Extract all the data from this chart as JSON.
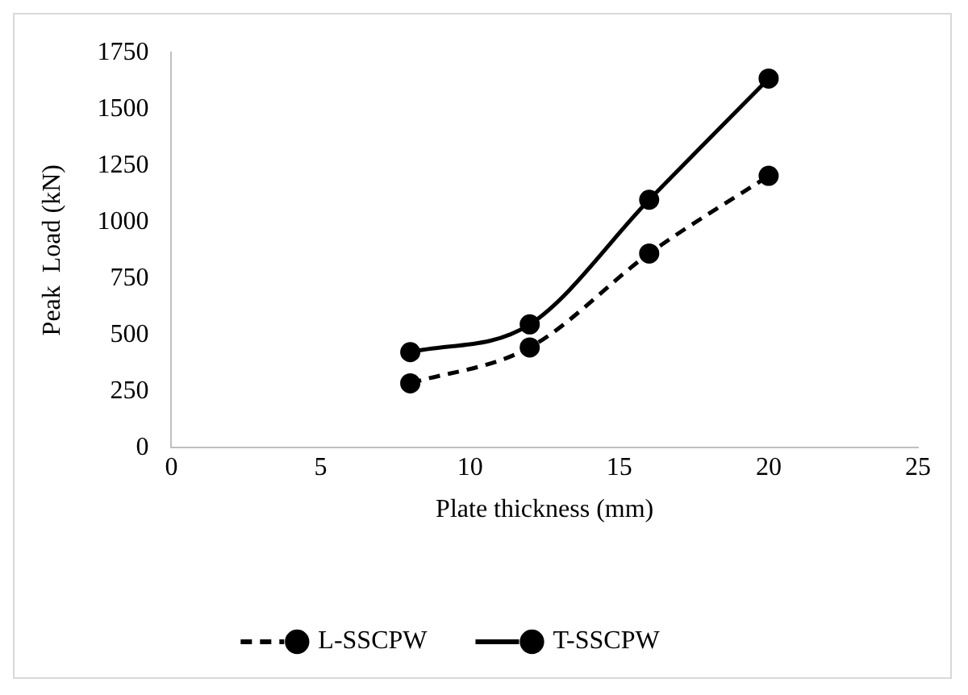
{
  "chart_data": {
    "type": "line",
    "xlabel": "Plate thickness (mm)",
    "ylabel": "Peak  Load (kN)",
    "x": [
      8,
      12,
      16,
      20
    ],
    "series": [
      {
        "name": "L-SSCPW",
        "color": "#000000",
        "values": [
          285,
          444,
          860,
          1204
        ],
        "line_style": "dashed"
      },
      {
        "name": "T-SSCPW",
        "color": "#000000",
        "values": [
          423,
          546,
          1098,
          1635
        ],
        "line_style": "solid"
      }
    ],
    "xlim": [
      0,
      25
    ],
    "xticks": [
      0,
      5,
      10,
      15,
      20,
      25
    ],
    "ylim": [
      0,
      1750
    ],
    "yticks": [
      0,
      250,
      500,
      750,
      1000,
      1250,
      1500,
      1750
    ],
    "grid": false,
    "legend": "bottom",
    "marker": "circle"
  }
}
